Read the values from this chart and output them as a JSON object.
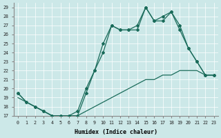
{
  "xlabel": "Humidex (Indice chaleur)",
  "bg_color": "#cce8e8",
  "line_color": "#1a6b5a",
  "xlim": [
    -0.5,
    23.5
  ],
  "ylim": [
    17,
    29.5
  ],
  "yticks": [
    17,
    18,
    19,
    20,
    21,
    22,
    23,
    24,
    25,
    26,
    27,
    28,
    29
  ],
  "xticks": [
    0,
    1,
    2,
    3,
    4,
    5,
    6,
    7,
    8,
    9,
    10,
    11,
    12,
    13,
    14,
    15,
    16,
    17,
    18,
    19,
    20,
    21,
    22,
    23
  ],
  "line1_x": [
    0,
    1,
    2,
    3,
    4,
    5,
    6,
    7,
    8,
    9,
    10,
    11,
    12,
    13,
    14,
    15,
    16,
    17,
    18,
    19,
    20,
    21,
    22,
    23
  ],
  "line1_y": [
    19.0,
    18.5,
    18.0,
    17.5,
    17.0,
    17.0,
    17.0,
    17.0,
    17.5,
    18.0,
    18.5,
    19.0,
    19.5,
    20.0,
    20.5,
    21.0,
    21.0,
    21.5,
    21.5,
    22.0,
    22.0,
    22.0,
    21.5,
    21.5
  ],
  "line2_x": [
    0,
    1,
    2,
    3,
    4,
    5,
    6,
    7,
    8,
    9,
    10,
    11,
    12,
    13,
    14,
    15,
    16,
    17,
    18,
    19,
    20,
    21,
    22,
    23
  ],
  "line2_y": [
    19.5,
    18.5,
    18.0,
    17.5,
    17.0,
    17.0,
    17.0,
    17.5,
    20.0,
    22.0,
    25.0,
    27.0,
    26.5,
    26.5,
    27.0,
    29.0,
    27.5,
    27.5,
    28.5,
    26.5,
    24.5,
    23.0,
    21.5,
    21.5
  ],
  "line3_x": [
    0,
    1,
    2,
    3,
    4,
    5,
    6,
    7,
    8,
    9,
    10,
    11,
    12,
    13,
    14,
    15,
    16,
    17,
    18,
    19,
    20,
    21,
    22,
    23
  ],
  "line3_y": [
    19.5,
    18.5,
    18.0,
    17.5,
    17.0,
    17.0,
    17.0,
    17.0,
    19.5,
    22.0,
    24.0,
    27.0,
    26.5,
    26.5,
    26.5,
    29.0,
    27.5,
    28.0,
    28.5,
    27.0,
    24.5,
    23.0,
    21.5,
    21.5
  ]
}
